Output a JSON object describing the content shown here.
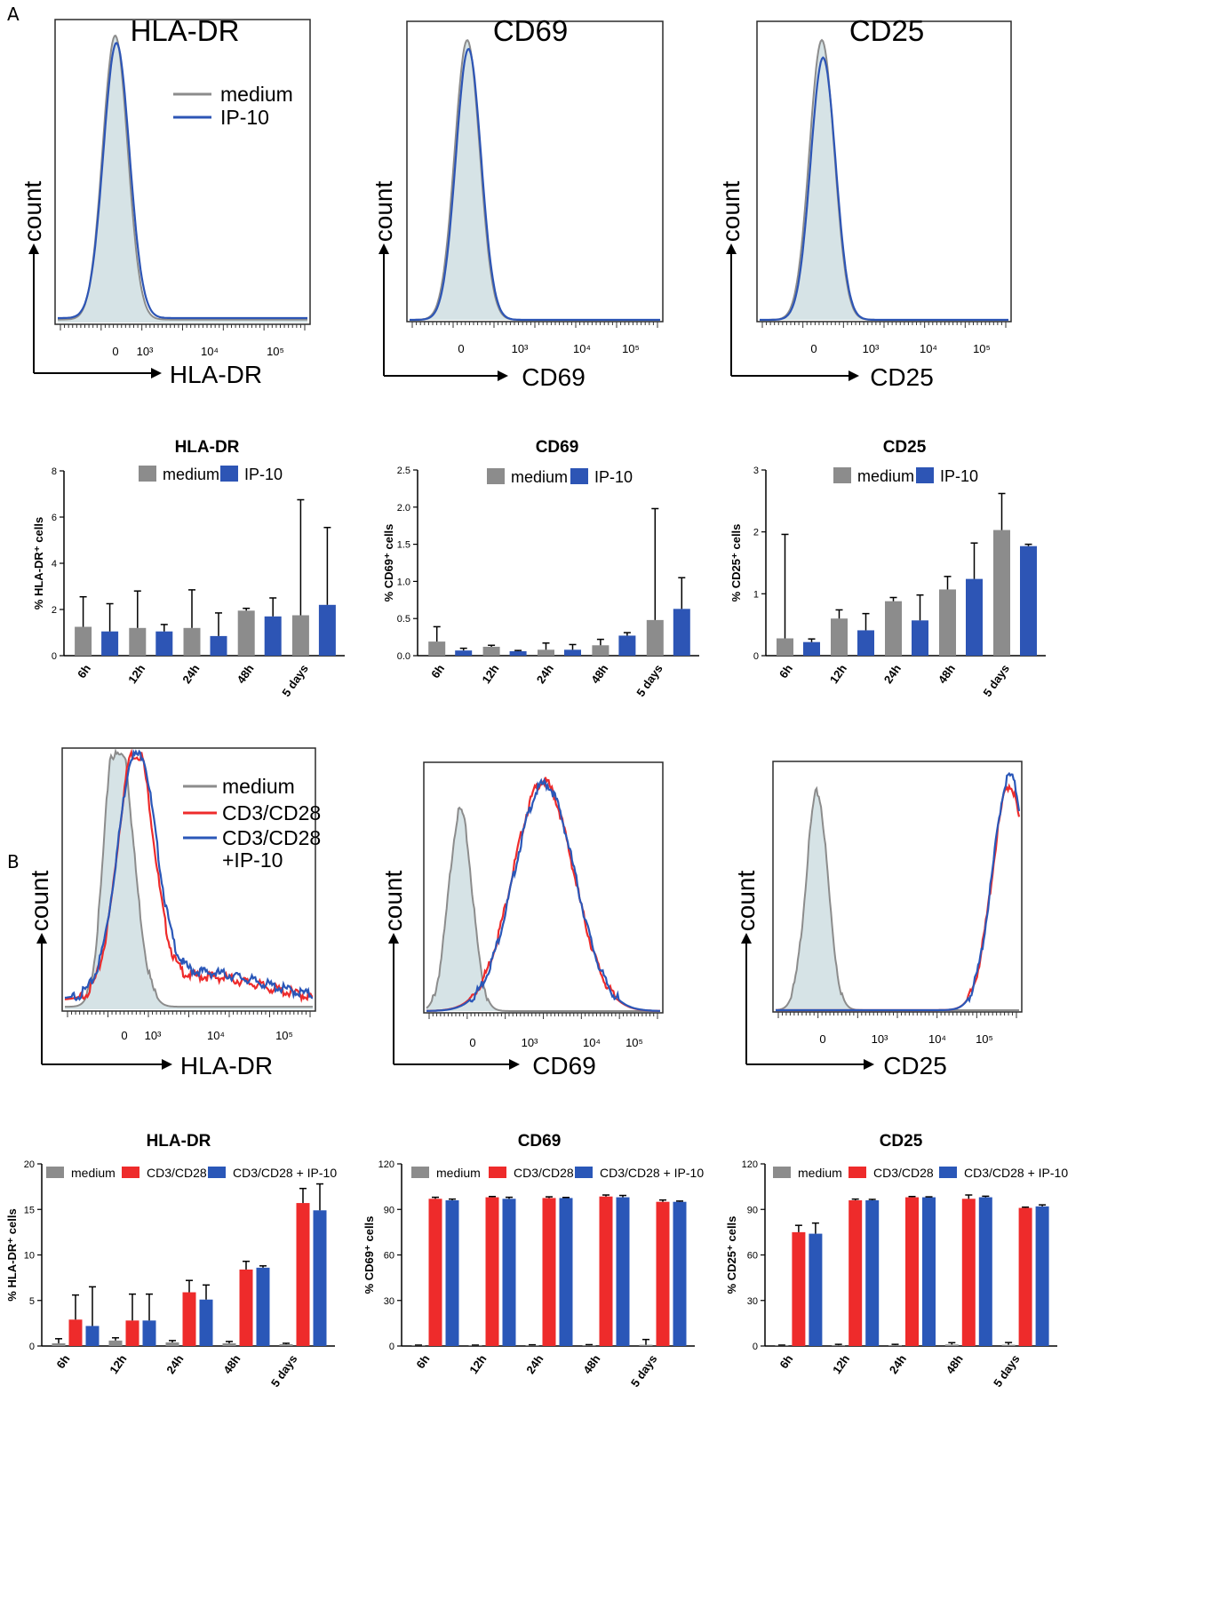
{
  "panel_labels": [
    "A",
    "B"
  ],
  "colors": {
    "medium": "#8c8c8c",
    "ip10": "#2d55b5",
    "cd3": "#ee2b2b",
    "combo": "#2a57b8",
    "fill": "#d6e3e6"
  },
  "chart_data": [
    {
      "id": "A_hist_hla",
      "type": "histogram",
      "title": "HLA-DR",
      "xlabel": "HLA-DR",
      "ylabel": "count",
      "x_ticks": [
        "0",
        "10³",
        "10⁴",
        "10⁵"
      ],
      "legend": [
        "medium",
        "IP-10"
      ],
      "series": [
        {
          "name": "medium",
          "color": "#8c8c8c",
          "filled": true,
          "peaks": [
            {
              "pos": 0.23,
              "h": 0.96,
              "w": 0.05
            }
          ],
          "baseline": 0.01
        },
        {
          "name": "IP-10",
          "color": "#2d55b5",
          "filled": false,
          "peaks": [
            {
              "pos": 0.235,
              "h": 0.93,
              "w": 0.052
            }
          ],
          "baseline": 0.015
        }
      ]
    },
    {
      "id": "A_hist_cd69",
      "type": "histogram",
      "title": "CD69",
      "xlabel": "CD69",
      "ylabel": "count",
      "x_ticks": [
        "0",
        "10³",
        "10⁴",
        "10⁵"
      ],
      "series": [
        {
          "name": "medium",
          "color": "#8c8c8c",
          "filled": true,
          "peaks": [
            {
              "pos": 0.23,
              "h": 0.96,
              "w": 0.05
            }
          ],
          "baseline": 0.0
        },
        {
          "name": "IP-10",
          "color": "#2d55b5",
          "filled": false,
          "peaks": [
            {
              "pos": 0.235,
              "h": 0.93,
              "w": 0.05
            }
          ],
          "baseline": 0.0
        }
      ]
    },
    {
      "id": "A_hist_cd25",
      "type": "histogram",
      "title": "CD25",
      "xlabel": "CD25",
      "ylabel": "count",
      "x_ticks": [
        "0",
        "10³",
        "10⁴",
        "10⁵"
      ],
      "series": [
        {
          "name": "medium",
          "color": "#8c8c8c",
          "filled": true,
          "peaks": [
            {
              "pos": 0.25,
              "h": 0.96,
              "w": 0.05
            }
          ],
          "baseline": 0.0
        },
        {
          "name": "IP-10",
          "color": "#2d55b5",
          "filled": false,
          "peaks": [
            {
              "pos": 0.255,
              "h": 0.9,
              "w": 0.05
            }
          ],
          "baseline": 0.0
        }
      ]
    },
    {
      "id": "A_bar_hla",
      "type": "bar",
      "title": "HLA-DR",
      "ylabel": "% HLA-DR⁺ cells",
      "ylim": [
        0,
        8
      ],
      "yticks": [
        0,
        2,
        4,
        6,
        8
      ],
      "ytick_labels": [
        "0",
        "2",
        "4",
        "6",
        "8"
      ],
      "categories": [
        "6h",
        "12h",
        "24h",
        "48h",
        "5 days"
      ],
      "series": [
        {
          "name": "medium",
          "color": "#8c8c8c",
          "values": [
            1.25,
            1.2,
            1.2,
            1.95,
            1.75
          ],
          "errors": [
            1.3,
            1.6,
            1.65,
            0.1,
            5.0
          ]
        },
        {
          "name": "IP-10",
          "color": "#2d55b5",
          "values": [
            1.05,
            1.05,
            0.85,
            1.7,
            2.2
          ],
          "errors": [
            1.2,
            0.3,
            1.0,
            0.8,
            3.35
          ]
        }
      ]
    },
    {
      "id": "A_bar_cd69",
      "type": "bar",
      "title": "CD69",
      "ylabel": "% CD69⁺ cells",
      "ylim": [
        0,
        2.5
      ],
      "yticks": [
        0,
        0.5,
        1.0,
        1.5,
        2.0,
        2.5
      ],
      "ytick_labels": [
        "0.0",
        "0.5",
        "1.0",
        "1.5",
        "2.0",
        "2.5"
      ],
      "categories": [
        "6h",
        "12h",
        "24h",
        "48h",
        "5 days"
      ],
      "series": [
        {
          "name": "medium",
          "color": "#8c8c8c",
          "values": [
            0.19,
            0.12,
            0.08,
            0.14,
            0.48
          ],
          "errors": [
            0.2,
            0.02,
            0.09,
            0.08,
            1.5
          ]
        },
        {
          "name": "IP-10",
          "color": "#2d55b5",
          "values": [
            0.07,
            0.06,
            0.08,
            0.27,
            0.63
          ],
          "errors": [
            0.03,
            0.01,
            0.07,
            0.04,
            0.42
          ]
        }
      ]
    },
    {
      "id": "A_bar_cd25",
      "type": "bar",
      "title": "CD25",
      "ylabel": "% CD25⁺ cells",
      "ylim": [
        0,
        3
      ],
      "yticks": [
        0,
        1,
        2,
        3
      ],
      "ytick_labels": [
        "0",
        "1",
        "2",
        "3"
      ],
      "categories": [
        "6h",
        "12h",
        "24h",
        "48h",
        "5 days"
      ],
      "series": [
        {
          "name": "medium",
          "color": "#8c8c8c",
          "values": [
            0.28,
            0.6,
            0.88,
            1.07,
            2.03
          ],
          "errors": [
            1.68,
            0.14,
            0.06,
            0.21,
            0.59
          ]
        },
        {
          "name": "IP-10",
          "color": "#2d55b5",
          "values": [
            0.22,
            0.41,
            0.57,
            1.24,
            1.77
          ],
          "errors": [
            0.05,
            0.27,
            0.41,
            0.58,
            0.03
          ]
        }
      ]
    },
    {
      "id": "B_hist_hla",
      "type": "histogram",
      "title": "",
      "xlabel": "HLA-DR",
      "ylabel": "count",
      "x_ticks": [
        "0",
        "10³",
        "10⁴",
        "10⁵"
      ],
      "legend": [
        "medium",
        "CD3/CD28",
        "CD3/CD28",
        "+IP-10"
      ],
      "series": [
        {
          "name": "medium",
          "color": "#8c8c8c",
          "filled": true,
          "peaks": [
            {
              "pos": 0.2,
              "h": 0.92,
              "w": 0.045
            },
            {
              "pos": 0.26,
              "h": 0.45,
              "w": 0.05
            }
          ],
          "baseline": 0.01
        },
        {
          "name": "CD3/CD28",
          "color": "#ee2b2b",
          "filled": false,
          "peaks": [
            {
              "pos": 0.285,
              "h": 0.97,
              "w": 0.07
            },
            {
              "pos": 0.55,
              "h": 0.1,
              "w": 0.25
            }
          ],
          "baseline": 0.03
        },
        {
          "name": "CD3/CD28 +IP-10",
          "color": "#2a57b8",
          "filled": false,
          "peaks": [
            {
              "pos": 0.29,
              "h": 0.95,
              "w": 0.075
            },
            {
              "pos": 0.55,
              "h": 0.11,
              "w": 0.25
            }
          ],
          "baseline": 0.035
        }
      ]
    },
    {
      "id": "B_hist_cd69",
      "type": "histogram",
      "title": "",
      "xlabel": "CD69",
      "ylabel": "count",
      "x_ticks": [
        "0",
        "10³",
        "10⁴",
        "10⁵"
      ],
      "series": [
        {
          "name": "medium",
          "color": "#8c8c8c",
          "filled": true,
          "peaks": [
            {
              "pos": 0.145,
              "h": 0.83,
              "w": 0.05
            }
          ],
          "baseline": 0.0
        },
        {
          "name": "CD3/CD28",
          "color": "#ee2b2b",
          "filled": false,
          "peaks": [
            {
              "pos": 0.5,
              "h": 0.95,
              "w": 0.13
            }
          ],
          "baseline": 0.0
        },
        {
          "name": "CD3/CD28 +IP-10",
          "color": "#2a57b8",
          "filled": false,
          "peaks": [
            {
              "pos": 0.505,
              "h": 0.94,
              "w": 0.13
            }
          ],
          "baseline": 0.0
        }
      ]
    },
    {
      "id": "B_hist_cd25",
      "type": "histogram",
      "title": "",
      "xlabel": "CD25",
      "ylabel": "count",
      "x_ticks": [
        "0",
        "10³",
        "10⁴",
        "10⁵"
      ],
      "series": [
        {
          "name": "medium",
          "color": "#8c8c8c",
          "filled": true,
          "peaks": [
            {
              "pos": 0.17,
              "h": 0.9,
              "w": 0.045
            }
          ],
          "baseline": 0.0
        },
        {
          "name": "CD3/CD28",
          "color": "#ee2b2b",
          "filled": false,
          "peaks": [
            {
              "pos": 0.96,
              "h": 0.93,
              "w": 0.07
            }
          ],
          "baseline": 0.0
        },
        {
          "name": "CD3/CD28 +IP-10",
          "color": "#2a57b8",
          "filled": false,
          "peaks": [
            {
              "pos": 0.962,
              "h": 0.97,
              "w": 0.07
            }
          ],
          "baseline": 0.0
        }
      ]
    },
    {
      "id": "B_bar_hla",
      "type": "bar",
      "title": "HLA-DR",
      "ylabel": "% HLA-DR⁺ cells",
      "ylim": [
        0,
        20
      ],
      "yticks": [
        0,
        5,
        10,
        15,
        20
      ],
      "ytick_labels": [
        "0",
        "5",
        "10",
        "15",
        "20"
      ],
      "categories": [
        "6h",
        "12h",
        "24h",
        "48h",
        "5 days"
      ],
      "series": [
        {
          "name": "medium",
          "color": "#8c8c8c",
          "values": [
            0.3,
            0.6,
            0.4,
            0.3,
            0.2
          ],
          "errors": [
            0.5,
            0.3,
            0.2,
            0.2,
            0.1
          ]
        },
        {
          "name": "CD3/CD28",
          "color": "#ee2b2b",
          "values": [
            2.9,
            2.8,
            5.9,
            8.4,
            15.7
          ],
          "errors": [
            2.7,
            2.9,
            1.3,
            0.9,
            1.6
          ]
        },
        {
          "name": "CD3/CD28 + IP-10",
          "color": "#2a57b8",
          "values": [
            2.2,
            2.8,
            5.1,
            8.6,
            14.9
          ],
          "errors": [
            4.3,
            2.9,
            1.6,
            0.2,
            2.9
          ]
        }
      ]
    },
    {
      "id": "B_bar_cd69",
      "type": "bar",
      "title": "CD69",
      "ylabel": "% CD69⁺ cells",
      "ylim": [
        0,
        120
      ],
      "yticks": [
        0,
        30,
        60,
        90,
        120
      ],
      "ytick_labels": [
        "0",
        "30",
        "60",
        "90",
        "120"
      ],
      "categories": [
        "6h",
        "12h",
        "24h",
        "48h",
        "5 days"
      ],
      "series": [
        {
          "name": "medium",
          "color": "#8c8c8c",
          "values": [
            0.3,
            0.3,
            0.5,
            0.5,
            0.8
          ],
          "errors": [
            0.3,
            0.3,
            0.3,
            0.4,
            3.5
          ]
        },
        {
          "name": "CD3/CD28",
          "color": "#ee2b2b",
          "values": [
            97,
            98,
            97.5,
            98.5,
            95
          ],
          "errors": [
            1.0,
            0.5,
            0.8,
            1.0,
            1.2
          ]
        },
        {
          "name": "CD3/CD28 + IP-10",
          "color": "#2a57b8",
          "values": [
            96,
            97,
            97.5,
            98,
            95
          ],
          "errors": [
            0.8,
            1.0,
            0.4,
            1.2,
            0.5
          ]
        }
      ]
    },
    {
      "id": "B_bar_cd25",
      "type": "bar",
      "title": "CD25",
      "ylabel": "% CD25⁺ cells",
      "ylim": [
        0,
        120
      ],
      "yticks": [
        0,
        30,
        60,
        90,
        120
      ],
      "ytick_labels": [
        "0",
        "30",
        "60",
        "90",
        "120"
      ],
      "categories": [
        "6h",
        "12h",
        "24h",
        "48h",
        "5 days"
      ],
      "series": [
        {
          "name": "medium",
          "color": "#8c8c8c",
          "values": [
            0.3,
            0.5,
            0.6,
            1.0,
            0.8
          ],
          "errors": [
            0.3,
            0.6,
            0.5,
            1.2,
            1.5
          ]
        },
        {
          "name": "CD3/CD28",
          "color": "#ee2b2b",
          "values": [
            75,
            96,
            98,
            97,
            91
          ],
          "errors": [
            4.5,
            0.8,
            0.5,
            2.5,
            0.5
          ]
        },
        {
          "name": "CD3/CD28 + IP-10",
          "color": "#2a57b8",
          "values": [
            74,
            96,
            98,
            98,
            92
          ],
          "errors": [
            7.0,
            0.6,
            0.3,
            0.7,
            1.0
          ]
        }
      ]
    }
  ]
}
